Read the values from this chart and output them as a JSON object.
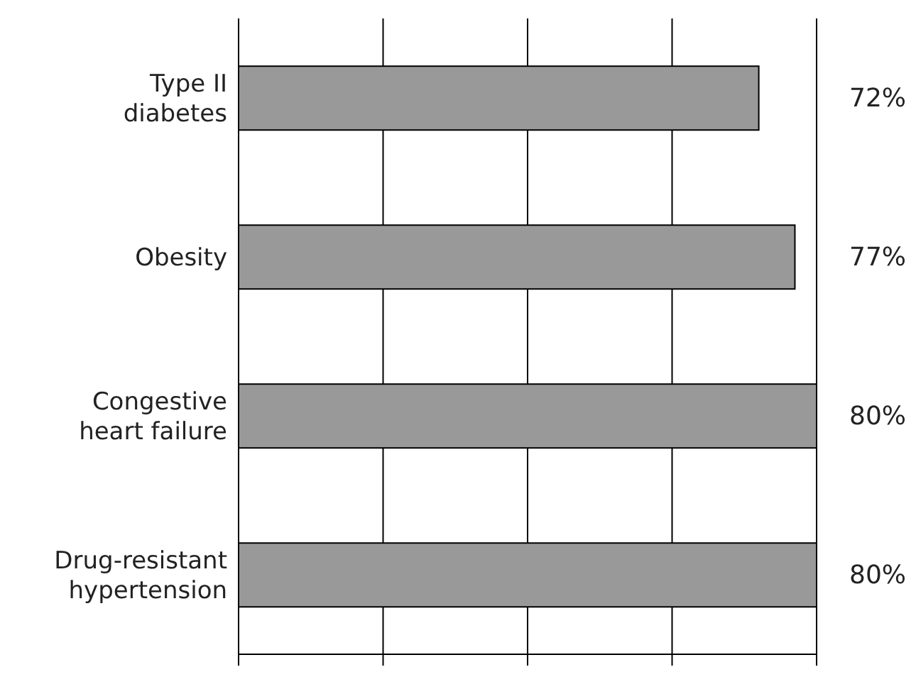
{
  "chart_data": {
    "type": "bar",
    "orientation": "horizontal",
    "categories": [
      "Type II diabetes",
      "Obesity",
      "Congestive heart failure",
      "Drug-resistant hypertension"
    ],
    "values": [
      72,
      77,
      80,
      80
    ],
    "color": "#999999",
    "value_labels": [
      "72%",
      "77%",
      "80%",
      "80%"
    ],
    "xlim": [
      0,
      80
    ],
    "grid": "x",
    "tick_labels": "y"
  }
}
